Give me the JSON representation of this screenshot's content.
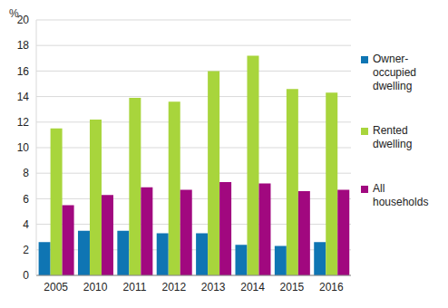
{
  "chart_data": {
    "type": "bar",
    "y_label": "%",
    "categories": [
      "2005",
      "2010",
      "2011",
      "2012",
      "2013",
      "2014",
      "2015",
      "2016"
    ],
    "series": [
      {
        "name": "Owner-occupied dwelling",
        "color": "#0f75b3",
        "values": [
          2.6,
          3.5,
          3.5,
          3.3,
          3.3,
          2.4,
          2.3,
          2.6
        ]
      },
      {
        "name": "Rented dwelling",
        "color": "#a8d53c",
        "values": [
          11.5,
          12.2,
          13.9,
          13.6,
          16.0,
          17.2,
          14.6,
          14.3
        ]
      },
      {
        "name": "All households",
        "color": "#a1087f",
        "values": [
          5.5,
          6.3,
          6.9,
          6.7,
          7.3,
          7.2,
          6.6,
          6.7
        ]
      }
    ],
    "ylim": [
      0,
      20
    ],
    "yticks": [
      0,
      2,
      4,
      6,
      8,
      10,
      12,
      14,
      16,
      18,
      20
    ],
    "grid": true,
    "legend": "right"
  }
}
